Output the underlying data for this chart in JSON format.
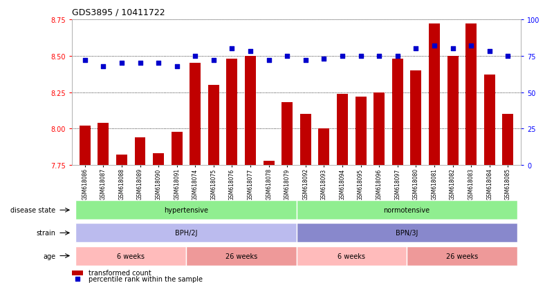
{
  "title": "GDS3895 / 10411722",
  "samples": [
    "GSM618086",
    "GSM618087",
    "GSM618088",
    "GSM618089",
    "GSM618090",
    "GSM618091",
    "GSM618074",
    "GSM618075",
    "GSM618076",
    "GSM618077",
    "GSM618078",
    "GSM618079",
    "GSM618092",
    "GSM618093",
    "GSM618094",
    "GSM618095",
    "GSM618096",
    "GSM618097",
    "GSM618080",
    "GSM618081",
    "GSM618082",
    "GSM618083",
    "GSM618084",
    "GSM618085"
  ],
  "bar_values": [
    8.02,
    8.04,
    7.82,
    7.94,
    7.83,
    7.98,
    8.45,
    8.3,
    8.48,
    8.5,
    7.78,
    8.18,
    8.1,
    8.0,
    8.24,
    8.22,
    8.25,
    8.48,
    8.4,
    8.72,
    8.5,
    8.72,
    8.37,
    8.1
  ],
  "percentile_values": [
    72,
    68,
    70,
    70,
    70,
    68,
    75,
    72,
    80,
    78,
    72,
    75,
    72,
    73,
    75,
    75,
    75,
    75,
    80,
    82,
    80,
    82,
    78,
    75
  ],
  "ylim_left": [
    7.75,
    8.75
  ],
  "ylim_right": [
    0,
    100
  ],
  "yticks_left": [
    7.75,
    8.0,
    8.25,
    8.5,
    8.75
  ],
  "yticks_right": [
    0,
    25,
    50,
    75,
    100
  ],
  "bar_color": "#C00000",
  "dot_color": "#0000CC",
  "disease_state_regions": [
    {
      "label": "hypertensive",
      "start": 0,
      "end": 11,
      "color": "#90EE90"
    },
    {
      "label": "normotensive",
      "start": 12,
      "end": 23,
      "color": "#90EE90"
    }
  ],
  "strain_regions": [
    {
      "label": "BPH/2J",
      "start": 0,
      "end": 11,
      "color": "#BBBBEE"
    },
    {
      "label": "BPN/3J",
      "start": 12,
      "end": 23,
      "color": "#8888CC"
    }
  ],
  "age_regions": [
    {
      "label": "6 weeks",
      "start": 0,
      "end": 5,
      "color": "#FFBBBB"
    },
    {
      "label": "26 weeks",
      "start": 6,
      "end": 11,
      "color": "#EE9999"
    },
    {
      "label": "6 weeks",
      "start": 12,
      "end": 17,
      "color": "#FFBBBB"
    },
    {
      "label": "26 weeks",
      "start": 18,
      "end": 23,
      "color": "#EE9999"
    }
  ],
  "row_labels": [
    "disease state",
    "strain",
    "age"
  ],
  "legend_labels": [
    "transformed count",
    "percentile rank within the sample"
  ]
}
